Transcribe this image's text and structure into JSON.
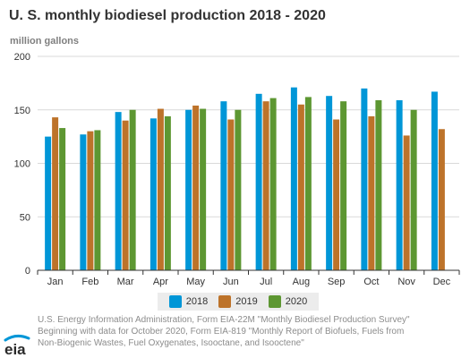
{
  "title": "U. S. monthly biodiesel production 2018 - 2020",
  "unit_label": "million gallons",
  "legend": [
    {
      "label": "2018",
      "color": "#0096d7"
    },
    {
      "label": "2019",
      "color": "#bd732a"
    },
    {
      "label": "2020",
      "color": "#5d9732"
    }
  ],
  "source_lines": [
    "U.S. Energy Information Administration, Form EIA-22M \"Monthly Biodiesel Production Survey\"",
    "Beginning with data for October 2020, Form EIA-819 \"Monthly Report of Biofuels, Fuels from",
    "Non-Biogenic Wastes, Fuel Oxygenates, Isooctane, and Isooctene\""
  ],
  "logo_text": "eia",
  "chart_data": {
    "type": "bar",
    "categories": [
      "Jan",
      "Feb",
      "Mar",
      "Apr",
      "May",
      "Jun",
      "Jul",
      "Aug",
      "Sep",
      "Oct",
      "Nov",
      "Dec"
    ],
    "series": [
      {
        "name": "2018",
        "color": "#0096d7",
        "values": [
          125,
          127,
          148,
          142,
          150,
          158,
          165,
          171,
          163,
          170,
          159,
          167
        ]
      },
      {
        "name": "2019",
        "color": "#bd732a",
        "values": [
          143,
          130,
          140,
          151,
          154,
          141,
          158,
          155,
          141,
          144,
          126,
          132
        ]
      },
      {
        "name": "2020",
        "color": "#5d9732",
        "values": [
          133,
          131,
          150,
          144,
          151,
          150,
          161,
          162,
          158,
          159,
          150,
          null
        ]
      }
    ],
    "ylim": [
      0,
      200
    ],
    "yticks": [
      "0",
      "50",
      "100",
      "150",
      "200"
    ],
    "grid": true
  }
}
